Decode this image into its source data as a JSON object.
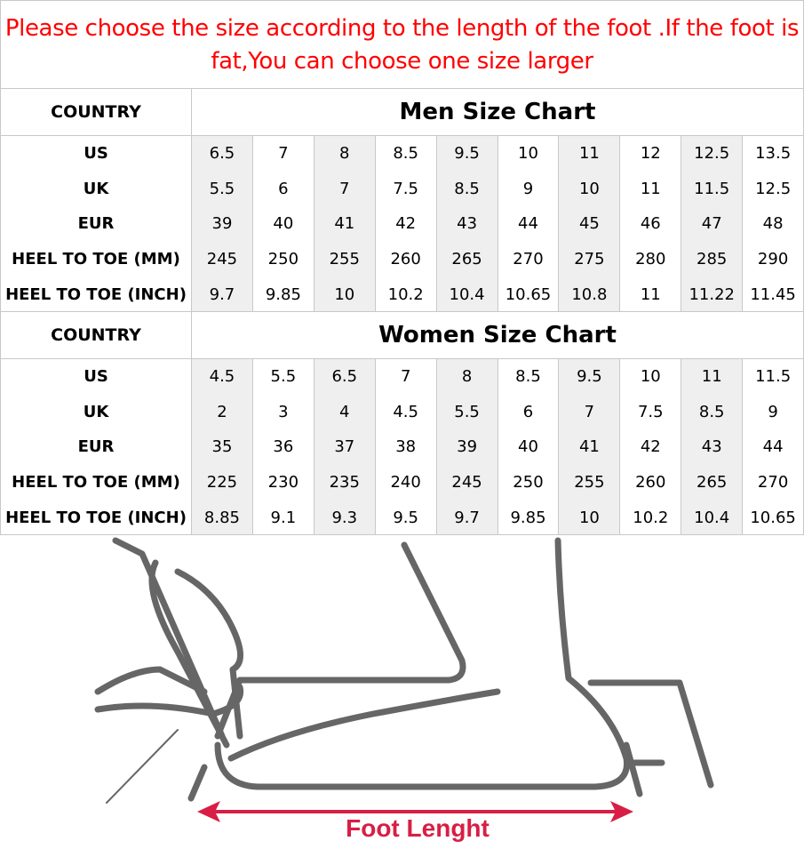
{
  "notice": "Please choose the size according to the length of the foot .If the foot is fat,You can choose one size larger",
  "row_labels": [
    "US",
    "UK",
    "EUR",
    "HEEL TO TOE (MM)",
    "HEEL TO TOE (INCH)"
  ],
  "men": {
    "country_label": "COUNTRY",
    "title": "Men Size Chart",
    "columns": [
      [
        "6.5",
        "5.5",
        "39",
        "245",
        "9.7"
      ],
      [
        "7",
        "6",
        "40",
        "250",
        "9.85"
      ],
      [
        "8",
        "7",
        "41",
        "255",
        "10"
      ],
      [
        "8.5",
        "7.5",
        "42",
        "260",
        "10.2"
      ],
      [
        "9.5",
        "8.5",
        "43",
        "265",
        "10.4"
      ],
      [
        "10",
        "9",
        "44",
        "270",
        "10.65"
      ],
      [
        "11",
        "10",
        "45",
        "275",
        "10.8"
      ],
      [
        "12",
        "11",
        "46",
        "280",
        "11"
      ],
      [
        "12.5",
        "11.5",
        "47",
        "285",
        "11.22"
      ],
      [
        "13.5",
        "12.5",
        "48",
        "290",
        "11.45"
      ]
    ]
  },
  "women": {
    "country_label": "COUNTRY",
    "title": "Women Size Chart",
    "columns": [
      [
        "4.5",
        "2",
        "35",
        "225",
        "8.85"
      ],
      [
        "5.5",
        "3",
        "36",
        "230",
        "9.1"
      ],
      [
        "6.5",
        "4",
        "37",
        "235",
        "9.3"
      ],
      [
        "7",
        "4.5",
        "38",
        "240",
        "9.5"
      ],
      [
        "8",
        "5.5",
        "39",
        "245",
        "9.7"
      ],
      [
        "8.5",
        "6",
        "40",
        "250",
        "9.85"
      ],
      [
        "9.5",
        "7",
        "41",
        "255",
        "10"
      ],
      [
        "10",
        "7.5",
        "42",
        "260",
        "10.2"
      ],
      [
        "11",
        "8.5",
        "43",
        "265",
        "10.4"
      ],
      [
        "11.5",
        "9",
        "44",
        "270",
        "10.65"
      ]
    ]
  },
  "diagram": {
    "caption": "Foot Lenght",
    "accent": "#d81e45",
    "line_color": "#666666"
  },
  "colors": {
    "notice": "#ff0000",
    "shade": "#efefef"
  }
}
